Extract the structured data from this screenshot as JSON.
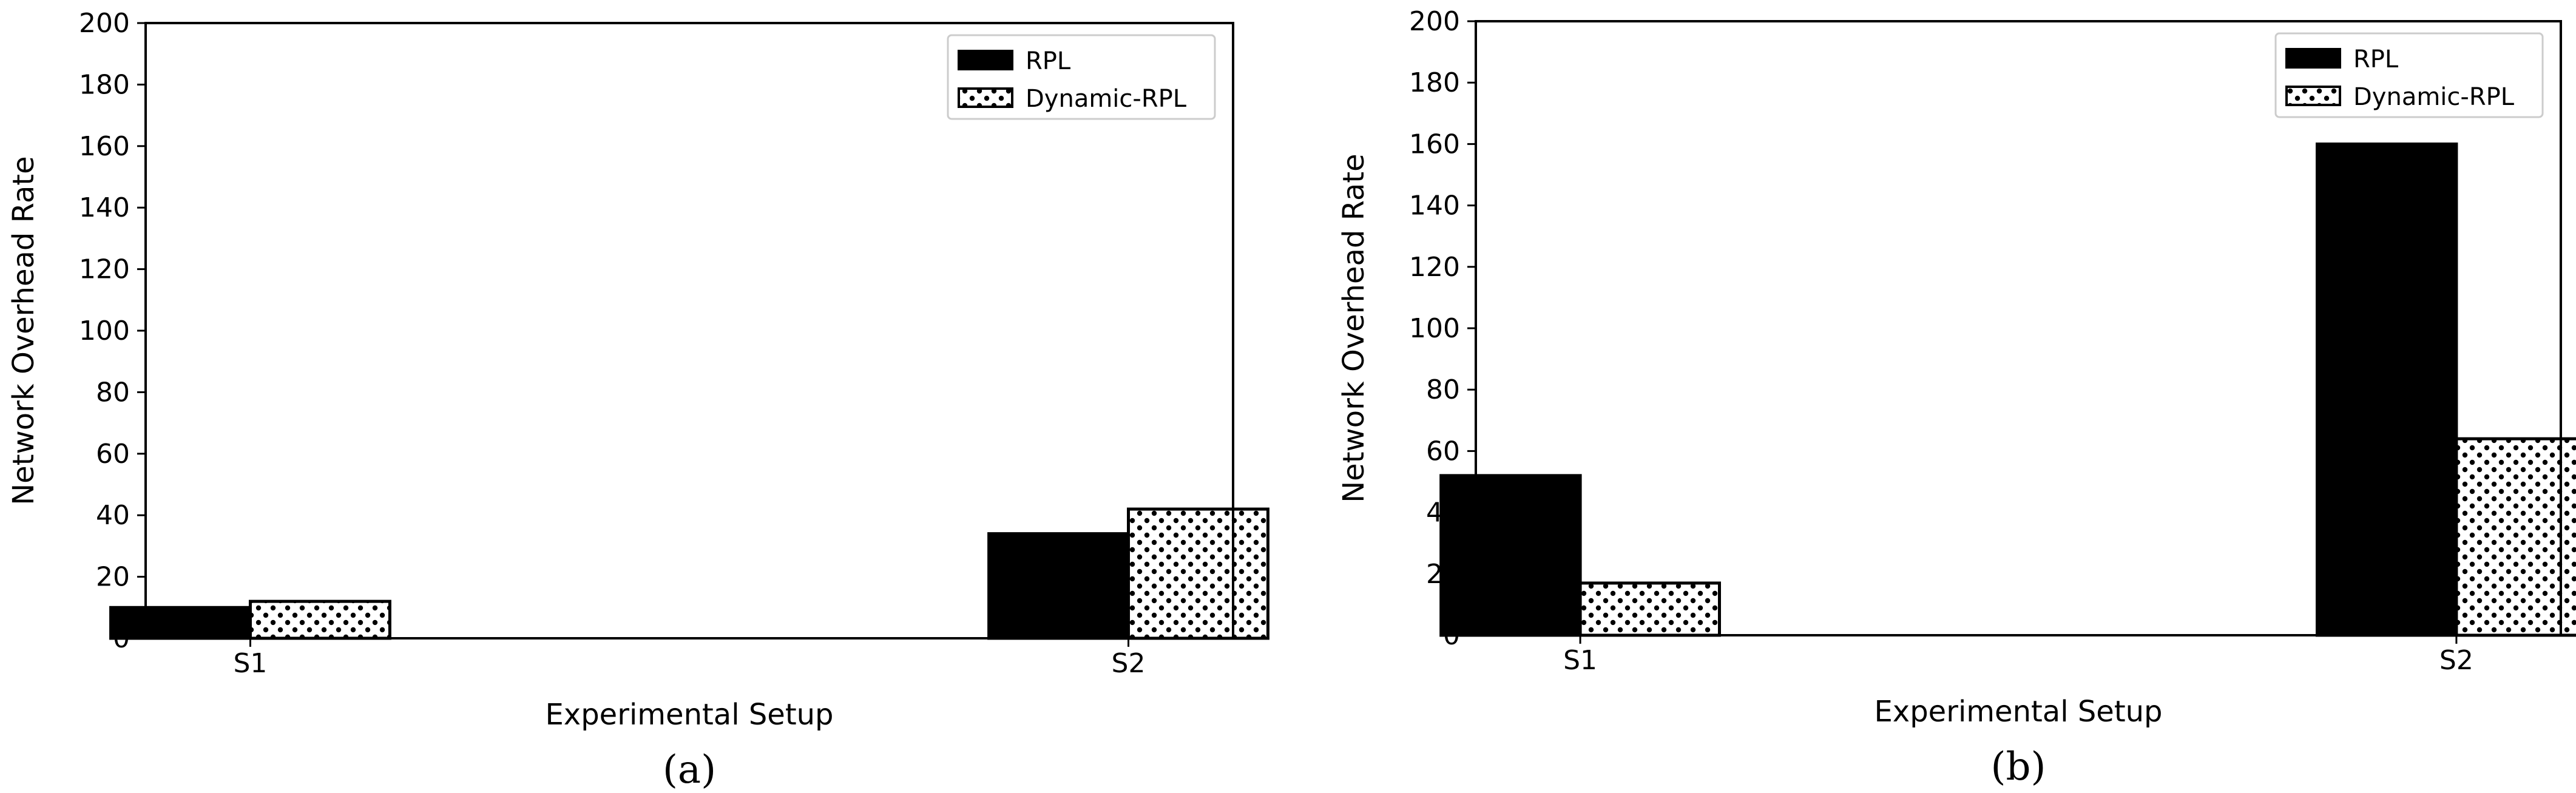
{
  "chart_data": [
    {
      "type": "bar",
      "panel_label": "(a)",
      "xlabel": "Experimental Setup",
      "ylabel": "Network Overhead Rate",
      "categories": [
        "S1",
        "S2"
      ],
      "ylim": [
        0,
        200
      ],
      "yticks": [
        0,
        20,
        40,
        60,
        80,
        100,
        120,
        140,
        160,
        180,
        200
      ],
      "grid": false,
      "legend_position": "top-right",
      "series": [
        {
          "name": "RPL",
          "values": [
            10,
            34
          ],
          "fill": "solid",
          "color": "#000000"
        },
        {
          "name": "Dynamic-RPL",
          "values": [
            12,
            42
          ],
          "fill": "dots",
          "color": "#000000"
        }
      ]
    },
    {
      "type": "bar",
      "panel_label": "(b)",
      "xlabel": "Experimental Setup",
      "ylabel": "Network Overhead Rate",
      "categories": [
        "S1",
        "S2"
      ],
      "ylim": [
        0,
        200
      ],
      "yticks": [
        0,
        20,
        40,
        60,
        80,
        100,
        120,
        140,
        160,
        180,
        200
      ],
      "grid": false,
      "legend_position": "top-right",
      "series": [
        {
          "name": "RPL",
          "values": [
            52,
            160
          ],
          "fill": "solid",
          "color": "#000000"
        },
        {
          "name": "Dynamic-RPL",
          "values": [
            17,
            64
          ],
          "fill": "dots",
          "color": "#000000"
        }
      ]
    }
  ]
}
